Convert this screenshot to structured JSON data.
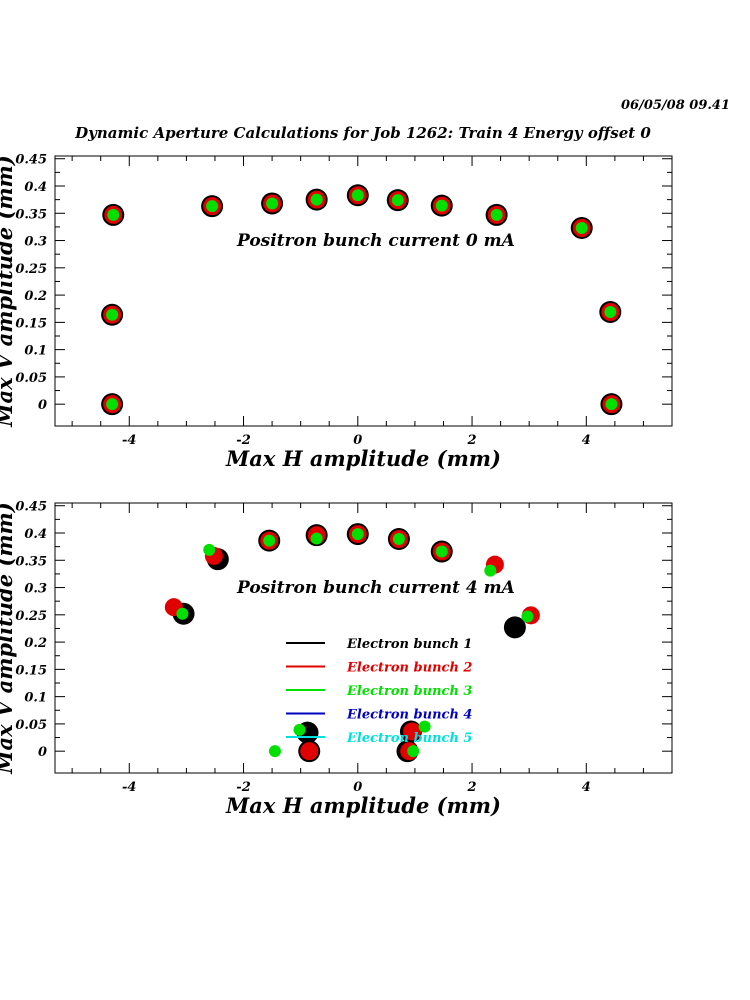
{
  "header": {
    "timestamp": "06/05/08   09.41",
    "title": "Dynamic Aperture Calculations for Job 1262:  Train 4   Energy offset  0"
  },
  "colors": {
    "electron_bunch_1": "#000000",
    "electron_bunch_2": "#e00000",
    "electron_bunch_3": "#00e000",
    "electron_bunch_4": "#0000c0",
    "electron_bunch_5": "#00e0e0",
    "axis": "#000000"
  },
  "legend": [
    {
      "label": "Electron bunch 1",
      "color": "#000000"
    },
    {
      "label": "Electron bunch 2",
      "color": "#e00000"
    },
    {
      "label": "Electron bunch 3",
      "color": "#00e000"
    },
    {
      "label": "Electron bunch 4",
      "color": "#0000c0"
    },
    {
      "label": "Electron bunch 5",
      "color": "#00e0e0"
    }
  ],
  "chart_data": [
    {
      "type": "scatter",
      "annotation": "Positron bunch current  0 mA",
      "xlabel": "Max H amplitude (mm)",
      "ylabel": "Max V amplitude (mm)",
      "xlim": [
        -5.3,
        5.5
      ],
      "ylim": [
        -0.04,
        0.455
      ],
      "xticks": [
        -4,
        -2,
        0,
        2,
        4
      ],
      "yticks": [
        0,
        0.05,
        0.1,
        0.15,
        0.2,
        0.25,
        0.3,
        0.35,
        0.4,
        0.45
      ],
      "ytick_labels": [
        "0",
        "0.05",
        "0.1",
        "0.15",
        "0.2",
        "0.25",
        "0.3",
        "0.35",
        "0.4",
        "0.45"
      ],
      "series": [
        {
          "name": "Electron bunch 1",
          "x": [
            -4.28,
            -2.55,
            -1.5,
            -0.72,
            0.0,
            0.7,
            1.47,
            2.43,
            3.92,
            4.42,
            4.44,
            -4.3,
            -4.3
          ],
          "y": [
            0.347,
            0.363,
            0.368,
            0.375,
            0.383,
            0.374,
            0.364,
            0.347,
            0.323,
            0.169,
            0.0,
            0.164,
            0.0
          ]
        },
        {
          "name": "Electron bunch 2",
          "x": [
            -4.28,
            -2.55,
            -1.5,
            -0.72,
            0.0,
            0.7,
            1.47,
            2.43,
            3.92,
            4.42,
            4.44,
            -4.3,
            -4.3
          ],
          "y": [
            0.347,
            0.363,
            0.368,
            0.375,
            0.383,
            0.374,
            0.364,
            0.347,
            0.323,
            0.169,
            0.0,
            0.164,
            0.0
          ]
        },
        {
          "name": "Electron bunch 3",
          "x": [
            -4.28,
            -2.55,
            -1.5,
            -0.72,
            0.0,
            0.7,
            1.47,
            2.43,
            3.92,
            4.42,
            4.44,
            -4.3,
            -4.3
          ],
          "y": [
            0.347,
            0.363,
            0.368,
            0.375,
            0.383,
            0.374,
            0.364,
            0.347,
            0.323,
            0.169,
            0.0,
            0.164,
            0.0
          ]
        }
      ]
    },
    {
      "type": "scatter",
      "annotation": "Positron bunch current  4 mA",
      "xlabel": "Max H amplitude (mm)",
      "ylabel": "Max V amplitude (mm)",
      "xlim": [
        -5.3,
        5.5
      ],
      "ylim": [
        -0.04,
        0.455
      ],
      "xticks": [
        -4,
        -2,
        0,
        2,
        4
      ],
      "yticks": [
        0,
        0.05,
        0.1,
        0.15,
        0.2,
        0.25,
        0.3,
        0.35,
        0.4,
        0.45
      ],
      "ytick_labels": [
        "0",
        "0.05",
        "0.1",
        "0.15",
        "0.2",
        "0.25",
        "0.3",
        "0.35",
        "0.4",
        "0.45"
      ],
      "series": [
        {
          "name": "Electron bunch 1",
          "x": [
            -2.45,
            -1.55,
            -0.72,
            0.0,
            0.72,
            1.47,
            2.75,
            -3.05,
            -0.88,
            -0.85,
            0.93,
            0.87
          ],
          "y": [
            0.352,
            0.386,
            0.396,
            0.398,
            0.389,
            0.366,
            0.227,
            0.252,
            0.034,
            0.0,
            0.036,
            0.0
          ]
        },
        {
          "name": "Electron bunch 2",
          "x": [
            -2.52,
            -1.55,
            -0.72,
            0.0,
            0.72,
            1.47,
            2.4,
            3.03,
            -3.22,
            -0.85,
            0.95,
            0.9
          ],
          "y": [
            0.358,
            0.386,
            0.396,
            0.398,
            0.389,
            0.366,
            0.342,
            0.249,
            0.264,
            0.0,
            0.036,
            0.0
          ]
        },
        {
          "name": "Electron bunch 3",
          "x": [
            -2.6,
            -1.55,
            -0.72,
            0.0,
            0.72,
            1.47,
            2.32,
            2.97,
            -3.07,
            -1.02,
            1.17,
            0.97,
            -1.45
          ],
          "y": [
            0.369,
            0.386,
            0.39,
            0.398,
            0.389,
            0.366,
            0.331,
            0.247,
            0.252,
            0.039,
            0.045,
            0.0,
            0.0
          ]
        }
      ]
    }
  ]
}
